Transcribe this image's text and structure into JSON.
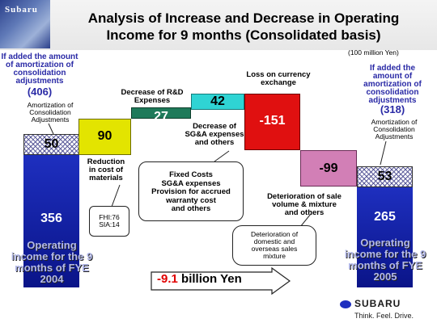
{
  "header": {
    "logo_text": "Subaru",
    "title_line1": "Analysis of Increase and Decrease in Operating",
    "title_line2": "Income for 9 months (Consolidated basis)",
    "unit": "(100 million Yen)"
  },
  "left_note": {
    "line1": "If added the amount",
    "line2": "of amortization of",
    "line3": "consolidation",
    "line4": "adjustments",
    "value": "(406)",
    "amort1": "Amortization of",
    "amort2": "Consolidation",
    "amort3": "Adjustments"
  },
  "right_note": {
    "line1": "If added the",
    "line2": "amount of",
    "line3": "amortization of",
    "line4": "consolidation",
    "line5": "adjustments",
    "value": "(318)",
    "amort1": "Amortization of",
    "amort2": "Consolidation",
    "amort3": "Adjustments"
  },
  "bars": {
    "start_hatch": "50",
    "start_value": "356",
    "start_caption1": "Operating",
    "start_caption2": "income for the 9",
    "start_caption3": "months of FYE",
    "start_caption4": "2004",
    "material": "90",
    "rd": "27",
    "sga": "42",
    "currency": "-151",
    "sale_volume": "-99",
    "end_hatch": "53",
    "end_value": "265",
    "end_caption1": "Operating",
    "end_caption2": "income for the 9",
    "end_caption3": "months of FYE",
    "end_caption4": "2005"
  },
  "labels": {
    "material1": "Reduction",
    "material2": "in cost of",
    "material3": "materials",
    "fhi": "FHI:76",
    "sia": "SIA:14",
    "rd1": "Decrease of R&D",
    "rd2": "Expenses",
    "sga1": "Decrease of",
    "sga2": "SG&A expenses",
    "sga3": "and others",
    "currency1": "Loss on currency",
    "currency2": "exchange",
    "fixed1": "Fixed Costs",
    "fixed2": "SG&A expenses",
    "fixed3": "Provision for accrued",
    "fixed4": "warranty cost",
    "fixed5": "and others",
    "sale1": "Deterioration of sale",
    "sale2": "volume & mixture",
    "sale3": "and others",
    "domestic1": "Deterioration of",
    "domestic2": "domestic and",
    "domestic3": "overseas sales",
    "domestic4": "mixture"
  },
  "summary": {
    "value": "-9.1",
    "text": " billion Yen"
  },
  "footer": {
    "brand": "SUBARU",
    "tagline": "Think. Feel. Drive."
  },
  "colors": {
    "blue_bar": "#1e2fbf",
    "material": "#e3e400",
    "rd": "#1f7a5a",
    "sga": "#2fd4d4",
    "currency": "#e01010",
    "sale_volume": "#d27fb6",
    "summary_red": "#e00000",
    "note_blue": "#2a2aa6"
  }
}
